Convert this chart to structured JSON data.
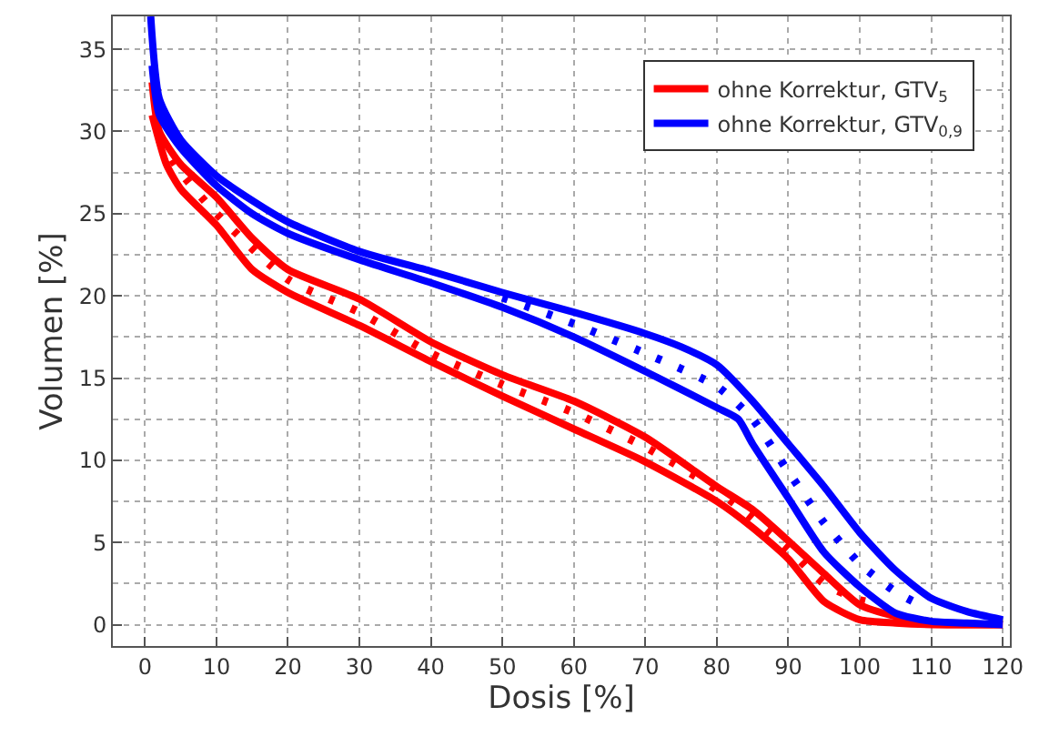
{
  "chart_data": {
    "type": "line",
    "xlabel": "Dosis [%]",
    "ylabel": "Volumen [%]",
    "xlim": [
      -4.5,
      121
    ],
    "ylim": [
      -1.3,
      37
    ],
    "xticks": [
      0,
      10,
      20,
      30,
      40,
      50,
      60,
      70,
      80,
      90,
      100,
      110,
      120
    ],
    "yticks": [
      0,
      5,
      10,
      15,
      20,
      25,
      30,
      35
    ],
    "grid": true,
    "legend": "top right",
    "marker": "none",
    "line_style": "solid",
    "series": [
      {
        "name": "ohne Korrektur, GTV$_{5}$",
        "color": "#ff0000",
        "x": [
          1,
          2,
          5,
          10,
          15,
          20,
          30,
          40,
          50,
          60,
          70,
          80,
          85,
          90,
          95,
          100,
          105,
          110,
          120
        ],
        "values": [
          33,
          30,
          28,
          26,
          23.5,
          21.6,
          19.8,
          17.2,
          15.2,
          13.6,
          11.4,
          8.4,
          7.0,
          5.1,
          3.1,
          1.2,
          0.5,
          0.1,
          0
        ]
      },
      {
        "color": "#ff0000",
        "x": [
          1,
          3,
          5,
          10,
          15,
          20,
          30,
          40,
          50,
          60,
          70,
          80,
          85,
          90,
          95,
          100,
          105,
          110,
          120
        ],
        "values": [
          31,
          28,
          26.5,
          24.3,
          21.6,
          20.2,
          18.2,
          16,
          13.9,
          11.9,
          9.9,
          7.5,
          5.9,
          4.0,
          1.4,
          0.3,
          0.1,
          0,
          0
        ]
      },
      {
        "color": "#ff0000",
        "line_style": "dotted",
        "x": [
          2,
          5,
          10,
          20,
          30,
          40,
          50,
          60,
          70,
          80,
          90,
          95,
          100,
          102
        ],
        "values": [
          29.5,
          27.5,
          25,
          21,
          19,
          16.5,
          14.6,
          12.9,
          10.8,
          8.2,
          4.6,
          2.5,
          1.5,
          1.3
        ]
      },
      {
        "name": "ohne Korrektur, GTV$_{0,9}$",
        "color": "#0000ff",
        "x": [
          0.8,
          2,
          5,
          10,
          15,
          20,
          30,
          40,
          50,
          60,
          70,
          75,
          80,
          85,
          90,
          95,
          100,
          105,
          110,
          115,
          120
        ],
        "values": [
          37,
          32,
          29.5,
          27.3,
          25.8,
          24.5,
          22.7,
          21.5,
          20.2,
          19.0,
          17.7,
          16.9,
          15.8,
          13.6,
          11.0,
          8.4,
          5.6,
          3.3,
          1.6,
          0.8,
          0.3
        ]
      },
      {
        "color": "#0000ff",
        "x": [
          1,
          2,
          5,
          10,
          15,
          20,
          30,
          40,
          50,
          60,
          70,
          80,
          83,
          85,
          90,
          95,
          100,
          105,
          110,
          115,
          120
        ],
        "values": [
          34,
          31,
          29,
          26.7,
          25,
          23.8,
          22.2,
          20.8,
          19.3,
          17.5,
          15.4,
          13.2,
          12.5,
          11.0,
          7.7,
          4.4,
          2.3,
          0.7,
          0.2,
          0.1,
          0
        ]
      },
      {
        "color": "#0000ff",
        "line_style": "dotted",
        "x": [
          50,
          60,
          70,
          80,
          85,
          90,
          95,
          100,
          105,
          108
        ],
        "values": [
          19.9,
          18.3,
          16.5,
          14.5,
          12.5,
          9.3,
          6.2,
          3.7,
          2.0,
          1.3
        ]
      }
    ]
  }
}
